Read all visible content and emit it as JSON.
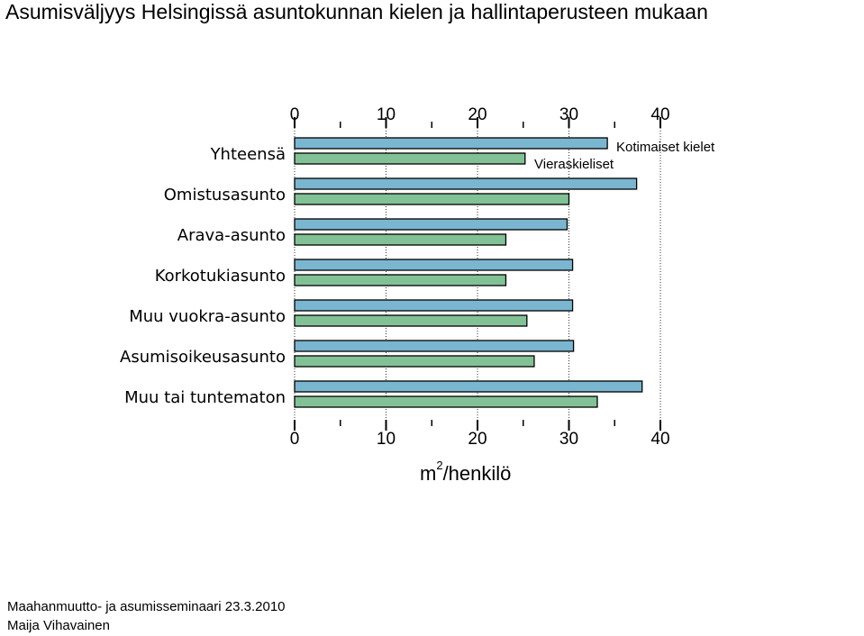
{
  "page": {
    "title": "Asumisväljyys Helsingissä asuntokunnan kielen ja hallintaperusteen mukaan",
    "footer_line1": "Maahanmuutto- ja asumisseminaari 23.3.2010",
    "footer_line2": "Maija Vihavainen"
  },
  "chart_data": {
    "type": "bar",
    "orientation": "horizontal",
    "categories": [
      "Yhteensä",
      "Omistusasunto",
      "Arava-asunto",
      "Korkotukiasunto",
      "Muu vuokra-asunto",
      "Asumisoikeusasunto",
      "Muu tai tuntematon"
    ],
    "series": [
      {
        "name": "Kotimaiset kielet",
        "color": "#7ab6d0",
        "values": [
          34.2,
          37.4,
          29.8,
          30.4,
          30.4,
          30.5,
          38.0
        ]
      },
      {
        "name": "Vieraskieliset",
        "color": "#82c196",
        "values": [
          25.2,
          30.0,
          23.1,
          23.1,
          25.4,
          26.2,
          33.1
        ]
      }
    ],
    "xlim": [
      0,
      40
    ],
    "xticks": [
      "0",
      "10",
      "20",
      "30",
      "40"
    ],
    "xlabel_main": "m",
    "xlabel_sup": "2",
    "xlabel_rest": "/henkilö",
    "grid": "vertical dotted at major ticks"
  }
}
